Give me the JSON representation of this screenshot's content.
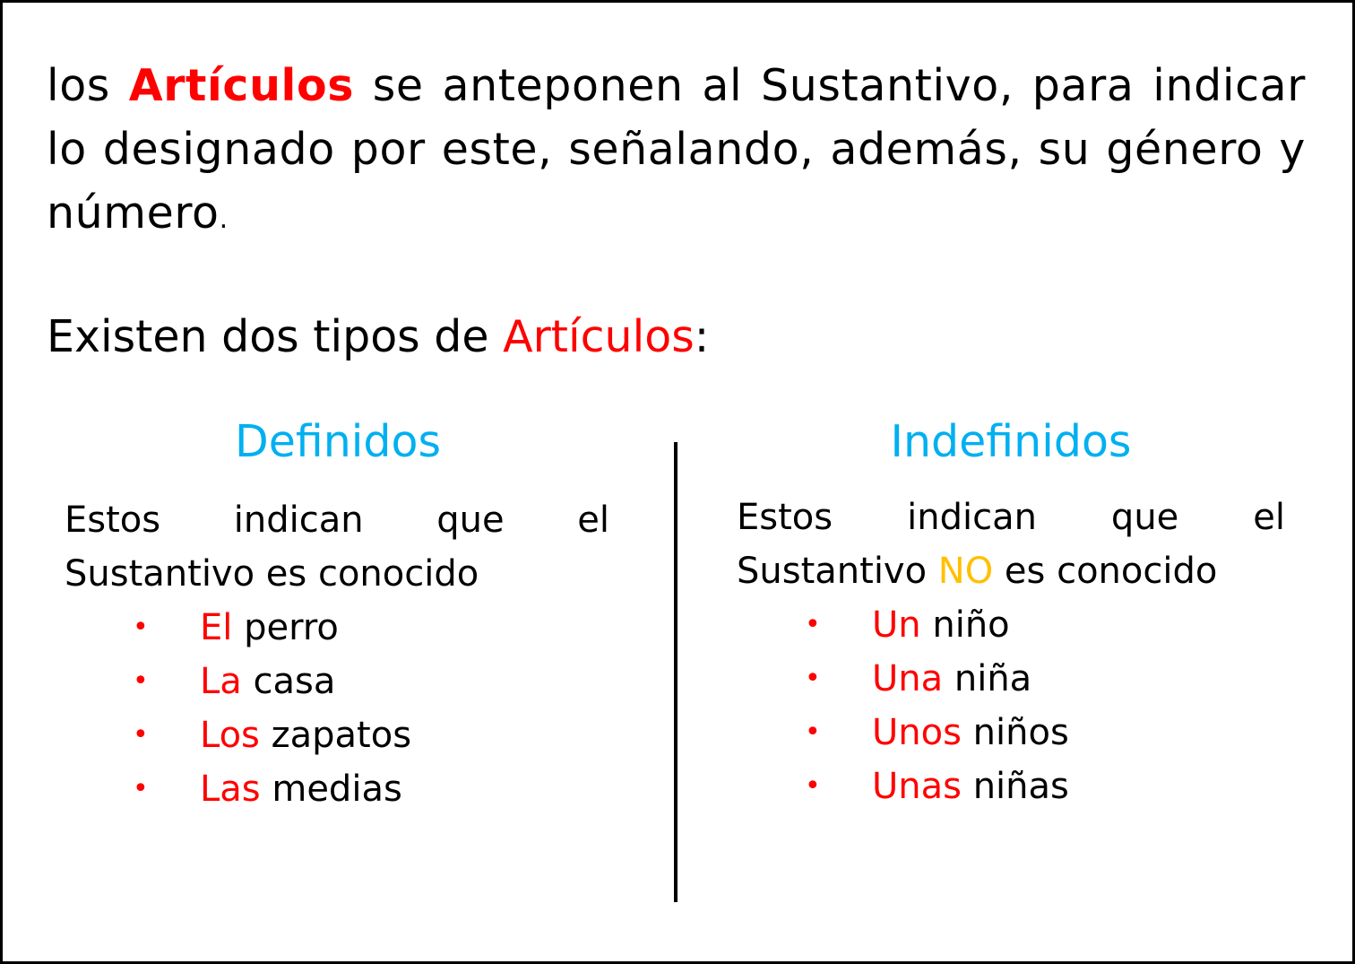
{
  "intro": {
    "word_1": "los",
    "highlight": "Artículos",
    "rest": "se anteponen al Sustantivo, para indicar lo designado por este, señalando, además, su género y número",
    "end": "."
  },
  "types": {
    "prefix": "Existen dos tipos de",
    "highlight": "Artículos",
    "suffix": ":"
  },
  "definidos": {
    "title": "Definidos",
    "desc": "Estos indican que el Sustantivo es conocido",
    "items": [
      {
        "article": "El",
        "noun": "perro"
      },
      {
        "article": "La",
        "noun": "casa"
      },
      {
        "article": "Los",
        "noun": "zapatos"
      },
      {
        "article": "Las",
        "noun": "medias"
      }
    ]
  },
  "indefinidos": {
    "title": "Indefinidos",
    "desc_before": "Estos indican que el Sustantivo",
    "desc_highlight": "NO",
    "desc_after": "es conocido",
    "items": [
      {
        "article": "Un",
        "noun": "niño"
      },
      {
        "article": "Una",
        "noun": "niña"
      },
      {
        "article": "Unos",
        "noun": "niños"
      },
      {
        "article": "Unas",
        "noun": "niñas"
      }
    ]
  },
  "bullet": "•",
  "colors": {
    "text": "#000000",
    "article": "#ff0000",
    "heading": "#00b0f0",
    "negation": "#ffc000",
    "border": "#000000"
  }
}
